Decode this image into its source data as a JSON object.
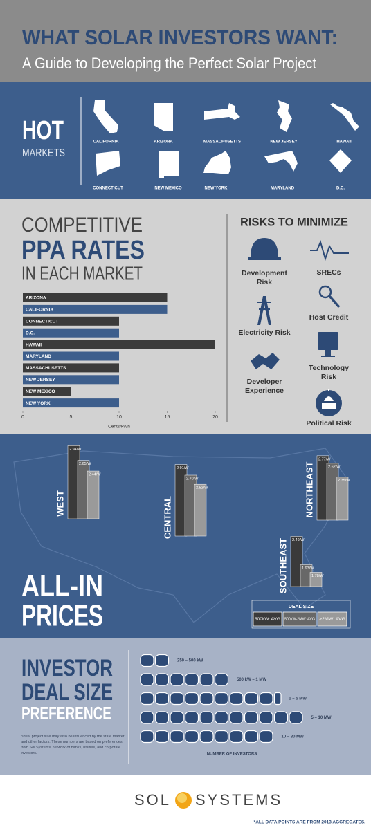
{
  "header": {
    "title": "WHAT SOLAR INVESTORS WANT:",
    "subtitle": "A Guide to Developing the Perfect Solar Project"
  },
  "hot_markets": {
    "title": "HOT",
    "subtitle": "MARKETS",
    "states": [
      "CALIFORNIA",
      "ARIZONA",
      "MASSACHUSETTS",
      "NEW JERSEY",
      "HAWAII",
      "CONNECTICUT",
      "NEW MEXICO",
      "NEW YORK",
      "MARYLAND",
      "D.C."
    ]
  },
  "risks": {
    "title": "RISKS TO MINIMIZE",
    "items": [
      {
        "lines": [
          "Development",
          "Risk"
        ]
      },
      {
        "lines": [
          "SRECs"
        ]
      },
      {
        "lines": [
          "Electricity Risk"
        ]
      },
      {
        "lines": [
          "Host Credit"
        ]
      },
      {
        "lines": [
          "Developer",
          "Experience"
        ]
      },
      {
        "lines": [
          "Technology",
          "Risk"
        ]
      },
      {
        "lines": [
          "Political Risk"
        ]
      }
    ]
  },
  "chart_data": [
    {
      "type": "hbar",
      "title_lines": [
        "COMPETITIVE",
        "PPA RATES",
        "IN EACH MARKET"
      ],
      "categories": [
        "ARIZONA",
        "CALIFORNIA",
        "CONNECTICUT",
        "D.C.",
        "HAWAII",
        "MARYLAND",
        "MASSACHUSETTS",
        "NEW JERSEY",
        "NEW MEXICO",
        "NEW YORK"
      ],
      "values": [
        15,
        15,
        10,
        10,
        20,
        10,
        10,
        10,
        5,
        10
      ],
      "colors": [
        "#3b3b3b",
        "#3d5e8c",
        "#3b3b3b",
        "#3d5e8c",
        "#3b3b3b",
        "#3d5e8c",
        "#3b3b3b",
        "#3d5e8c",
        "#3b3b3b",
        "#3d5e8c"
      ],
      "xlim": [
        0,
        20
      ],
      "xticks": [
        0,
        5,
        10,
        15,
        20
      ],
      "x_label": "Cents/kWh"
    },
    {
      "type": "grouped-bar",
      "title_lines": [
        "ALL-IN",
        "PRICES"
      ],
      "categories": [
        "WEST",
        "CENTRAL",
        "NORTHEAST",
        "SOUTHEAST"
      ],
      "ylim": [
        1.5,
        3
      ],
      "legend_title": "DEAL SIZE",
      "series": [
        {
          "name": "500kW: AVG",
          "color": "#3a3a3a",
          "values": [
            2.94,
            2.91,
            2.77,
            2.49
          ],
          "value_labels": [
            "2.94/W",
            "2.91/W",
            "2.77/W",
            "2.49/W"
          ]
        },
        {
          "name": "500kW-2MW: AVG",
          "color": "#686868",
          "values": [
            2.65,
            2.7,
            2.62,
            1.93
          ],
          "value_labels": [
            "2.65/W",
            "2.70/W",
            "2.62/W",
            "1.93/W"
          ]
        },
        {
          "name": ">2MW: AVG",
          "color": "#9a9a9a",
          "values": [
            2.44,
            2.52,
            2.35,
            1.78
          ],
          "value_labels": [
            "2.44/W",
            "2.52/W",
            "2.35/W",
            "1.78/W"
          ]
        }
      ]
    },
    {
      "type": "pictogram",
      "title_lines": [
        "INVESTOR",
        "DEAL SIZE",
        "PREFERENCE"
      ],
      "categories": [
        "250 – 500 kW",
        "500 kW – 1 MW",
        "1 – 5 MW",
        "5 – 10 MW",
        "10 – 30 MW"
      ],
      "values": [
        2,
        6,
        9.5,
        11,
        9
      ],
      "color": "#2d4a76",
      "x_label": "NUMBER OF INVESTORS",
      "note": "*Ideal project size may also be influenced by the state market and other factors. These numbers are based on preferences from Sol Systems' network of banks, utilities, and corporate investors."
    }
  ],
  "footer": {
    "logo_left": "SOL",
    "logo_right": "SYSTEMS",
    "note": "*ALL DATA POINTS ARE FROM 2013 AGGREGATES."
  }
}
